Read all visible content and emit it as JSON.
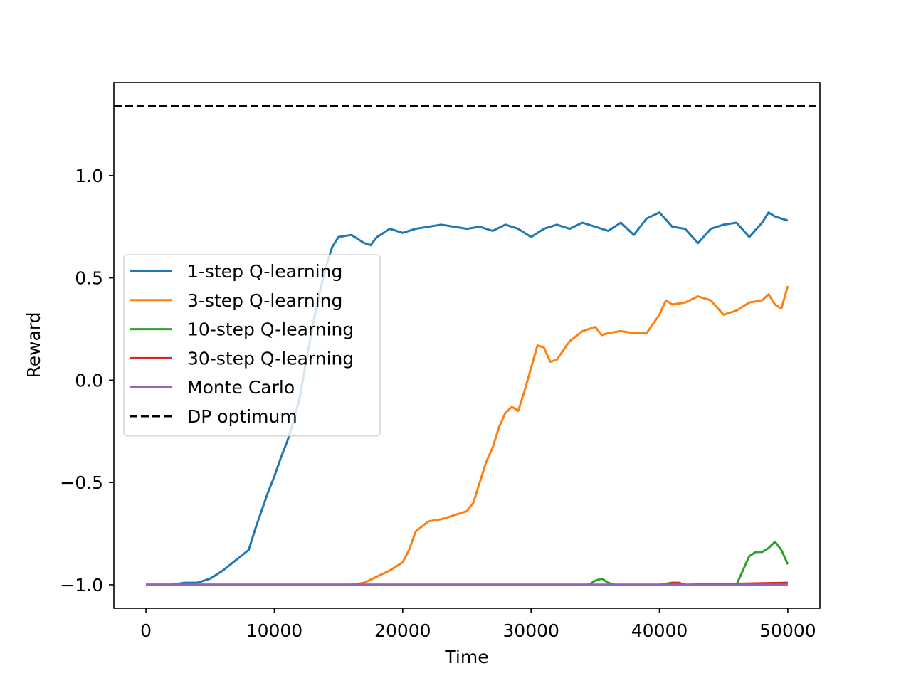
{
  "chart_data": {
    "type": "line",
    "title": "",
    "xlabel": "Time",
    "ylabel": "Reward",
    "xlim": [
      -2500,
      52500
    ],
    "ylim": [
      -1.115,
      1.455
    ],
    "xticks": [
      0,
      10000,
      20000,
      30000,
      40000,
      50000
    ],
    "xtick_labels": [
      "0",
      "10000",
      "20000",
      "30000",
      "40000",
      "50000"
    ],
    "yticks": [
      -1.0,
      -0.5,
      0.0,
      0.5,
      1.0
    ],
    "ytick_labels": [
      "−1.0",
      "−0.5",
      "0.0",
      "0.5",
      "1.0"
    ],
    "grid": false,
    "legend_position": "center-left",
    "series": [
      {
        "name": "1-step Q-learning",
        "color": "#1f77b4",
        "style": "solid",
        "x": [
          0,
          1000,
          2000,
          3000,
          4000,
          5000,
          6000,
          7000,
          8000,
          8500,
          9000,
          9500,
          10000,
          10500,
          11000,
          11500,
          12000,
          12500,
          13000,
          13500,
          14000,
          14500,
          15000,
          16000,
          17000,
          17500,
          18000,
          19000,
          20000,
          21000,
          22000,
          23000,
          24000,
          25000,
          26000,
          27000,
          28000,
          29000,
          30000,
          31000,
          32000,
          33000,
          34000,
          35000,
          36000,
          37000,
          38000,
          39000,
          40000,
          41000,
          42000,
          43000,
          44000,
          45000,
          46000,
          47000,
          48000,
          48500,
          49000,
          50000
        ],
        "y": [
          -1.0,
          -1.0,
          -1.0,
          -0.99,
          -0.99,
          -0.97,
          -0.93,
          -0.88,
          -0.83,
          -0.73,
          -0.64,
          -0.55,
          -0.47,
          -0.38,
          -0.3,
          -0.2,
          -0.08,
          0.1,
          0.27,
          0.42,
          0.55,
          0.65,
          0.7,
          0.71,
          0.67,
          0.66,
          0.7,
          0.74,
          0.72,
          0.74,
          0.75,
          0.76,
          0.75,
          0.74,
          0.75,
          0.73,
          0.76,
          0.74,
          0.7,
          0.74,
          0.76,
          0.74,
          0.77,
          0.75,
          0.73,
          0.77,
          0.71,
          0.79,
          0.82,
          0.75,
          0.74,
          0.67,
          0.74,
          0.76,
          0.77,
          0.7,
          0.77,
          0.82,
          0.8,
          0.78
        ]
      },
      {
        "name": "3-step Q-learning",
        "color": "#ff7f0e",
        "style": "solid",
        "x": [
          0,
          2000,
          4000,
          6000,
          8000,
          10000,
          12000,
          14000,
          16000,
          17000,
          18000,
          19000,
          20000,
          20500,
          21000,
          22000,
          23000,
          24000,
          25000,
          25500,
          26000,
          26500,
          27000,
          27500,
          28000,
          28500,
          29000,
          29500,
          30000,
          30500,
          31000,
          31500,
          32000,
          33000,
          34000,
          35000,
          35500,
          36000,
          37000,
          38000,
          39000,
          40000,
          40500,
          41000,
          42000,
          43000,
          44000,
          45000,
          46000,
          47000,
          48000,
          48500,
          49000,
          49500,
          50000
        ],
        "y": [
          -1.0,
          -1.0,
          -1.0,
          -1.0,
          -1.0,
          -1.0,
          -1.0,
          -1.0,
          -1.0,
          -0.99,
          -0.96,
          -0.93,
          -0.89,
          -0.83,
          -0.74,
          -0.69,
          -0.68,
          -0.66,
          -0.64,
          -0.6,
          -0.5,
          -0.4,
          -0.33,
          -0.23,
          -0.16,
          -0.13,
          -0.15,
          -0.05,
          0.06,
          0.17,
          0.16,
          0.09,
          0.1,
          0.19,
          0.24,
          0.26,
          0.22,
          0.23,
          0.24,
          0.23,
          0.23,
          0.32,
          0.39,
          0.37,
          0.38,
          0.41,
          0.39,
          0.32,
          0.34,
          0.38,
          0.39,
          0.42,
          0.37,
          0.35,
          0.46
        ]
      },
      {
        "name": "10-step Q-learning",
        "color": "#2ca02c",
        "style": "solid",
        "x": [
          0,
          33000,
          34500,
          35000,
          35500,
          36000,
          36500,
          37000,
          40000,
          41000,
          42000,
          45000,
          46000,
          46500,
          47000,
          47500,
          48000,
          48500,
          49000,
          49500,
          50000
        ],
        "y": [
          -1.0,
          -1.0,
          -1.0,
          -0.98,
          -0.97,
          -0.99,
          -1.0,
          -1.0,
          -1.0,
          -0.99,
          -1.0,
          -1.0,
          -1.0,
          -0.93,
          -0.86,
          -0.84,
          -0.84,
          -0.82,
          -0.79,
          -0.83,
          -0.9
        ]
      },
      {
        "name": "30-step Q-learning",
        "color": "#d62728",
        "style": "solid",
        "x": [
          0,
          40500,
          41000,
          41500,
          42000,
          50000
        ],
        "y": [
          -1.0,
          -1.0,
          -0.99,
          -0.99,
          -1.0,
          -0.99
        ]
      },
      {
        "name": "Monte Carlo",
        "color": "#9467bd",
        "style": "solid",
        "x": [
          0,
          50000
        ],
        "y": [
          -1.0,
          -1.0
        ]
      },
      {
        "name": "DP optimum",
        "color": "#000000",
        "style": "dashed",
        "x": [
          -2500,
          52500
        ],
        "y": [
          1.34,
          1.34
        ]
      }
    ]
  }
}
